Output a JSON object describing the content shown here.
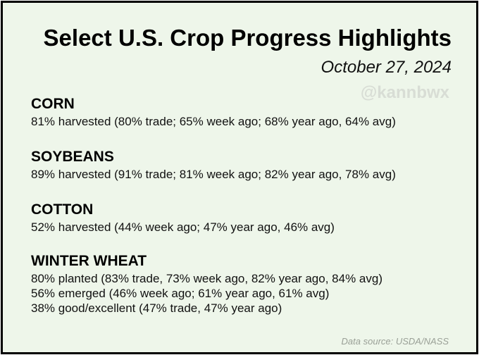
{
  "title": "Select U.S. Crop Progress Highlights",
  "date": "October 27, 2024",
  "watermark": "@kannbwx",
  "sections": [
    {
      "name": "CORN",
      "lines": [
        "81% harvested (80% trade; 65% week ago; 68% year ago, 64% avg)"
      ]
    },
    {
      "name": "SOYBEANS",
      "lines": [
        "89% harvested (91% trade; 81% week ago; 82% year ago, 78% avg)"
      ]
    },
    {
      "name": "COTTON",
      "lines": [
        "52% harvested (44% week ago; 47% year ago, 46% avg)"
      ]
    },
    {
      "name": "WINTER WHEAT",
      "lines": [
        "80% planted (83% trade, 73% week ago, 82% year ago, 84% avg)",
        "56% emerged (46% week ago; 61% year ago, 61% avg)",
        "38% good/excellent (47% trade, 47% year ago)"
      ]
    }
  ],
  "source": "Data source: USDA/NASS",
  "colors": {
    "background": "#eef6ea",
    "border": "#000000",
    "watermark": "#d8ddd5",
    "source": "#9aa097"
  }
}
